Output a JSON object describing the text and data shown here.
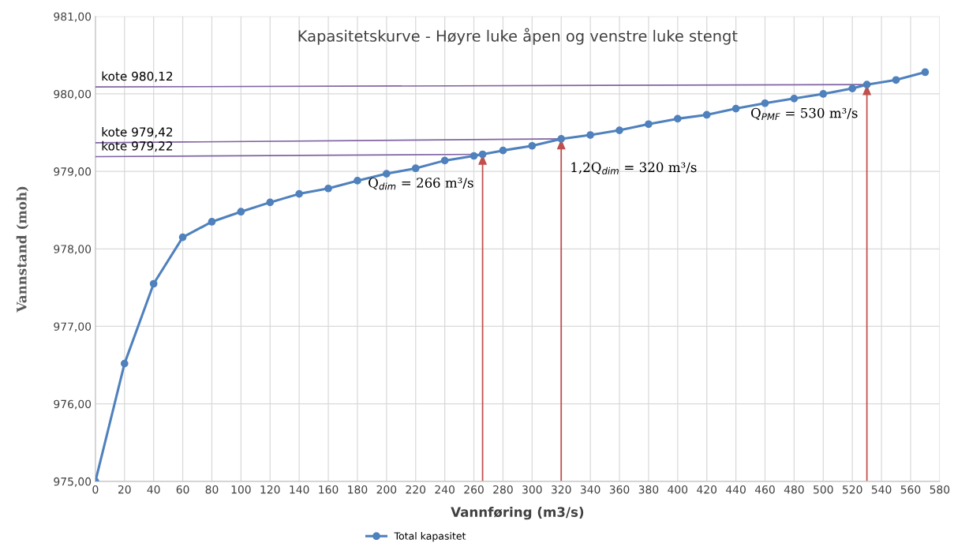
{
  "chart_data": {
    "type": "line",
    "title": "Kapasitetskurve - Høyre luke åpen og venstre luke stengt",
    "xlabel": "Vannføring (m3/s)",
    "ylabel": "Vannstand (moh)",
    "series": [
      {
        "name": "Total kapasitet",
        "color": "#4f81bd",
        "marker": "circle",
        "x": [
          0,
          20,
          40,
          60,
          80,
          100,
          120,
          140,
          160,
          180,
          200,
          220,
          240,
          260,
          266,
          280,
          300,
          320,
          340,
          360,
          380,
          400,
          420,
          440,
          460,
          480,
          500,
          520,
          530,
          550,
          570
        ],
        "values": [
          975.0,
          976.52,
          977.55,
          978.15,
          978.35,
          978.48,
          978.6,
          978.71,
          978.78,
          978.88,
          978.97,
          979.04,
          979.14,
          979.2,
          979.22,
          979.27,
          979.33,
          979.42,
          979.47,
          979.53,
          979.61,
          979.68,
          979.73,
          979.81,
          979.88,
          979.94,
          980.0,
          980.07,
          980.12,
          980.18,
          980.28
        ]
      },
      {
        "name": "kote 980,12",
        "color": "#8064a2",
        "marker": "none",
        "x": [
          0,
          530
        ],
        "values": [
          980.09,
          980.12
        ]
      },
      {
        "name": "kote 979,42",
        "color": "#8064a2",
        "marker": "none",
        "x": [
          0,
          320
        ],
        "values": [
          979.37,
          979.42
        ]
      },
      {
        "name": "kote 979,22",
        "color": "#8064a2",
        "marker": "none",
        "x": [
          0,
          266
        ],
        "values": [
          979.19,
          979.22
        ]
      }
    ],
    "annotations": [
      {
        "text": "Q$_{dim}$ = 266 m³/s",
        "x": 266,
        "y": 979.22
      },
      {
        "text": "1,2Q$_{dim}$ = 320 m³/s",
        "x": 320,
        "y": 979.42
      },
      {
        "text": "Q$_{PMF}$ = 530 m³/s",
        "x": 530,
        "y": 980.12
      }
    ],
    "xlim": [
      0,
      580
    ],
    "xticks": [
      0,
      20,
      40,
      60,
      80,
      100,
      120,
      140,
      160,
      180,
      200,
      220,
      240,
      260,
      280,
      300,
      320,
      340,
      360,
      380,
      400,
      420,
      440,
      460,
      480,
      500,
      520,
      540,
      560,
      580
    ],
    "ylim": [
      975,
      981
    ],
    "yticks": [
      {
        "value": 975,
        "label": "975,00"
      },
      {
        "value": 976,
        "label": "976,00"
      },
      {
        "value": 977,
        "label": "977,00"
      },
      {
        "value": 978,
        "label": "978,00"
      },
      {
        "value": 979,
        "label": "979,00"
      },
      {
        "value": 980,
        "label": "980,00"
      },
      {
        "value": 981,
        "label": "981,00"
      }
    ],
    "grid": true,
    "legend": "bottom"
  }
}
